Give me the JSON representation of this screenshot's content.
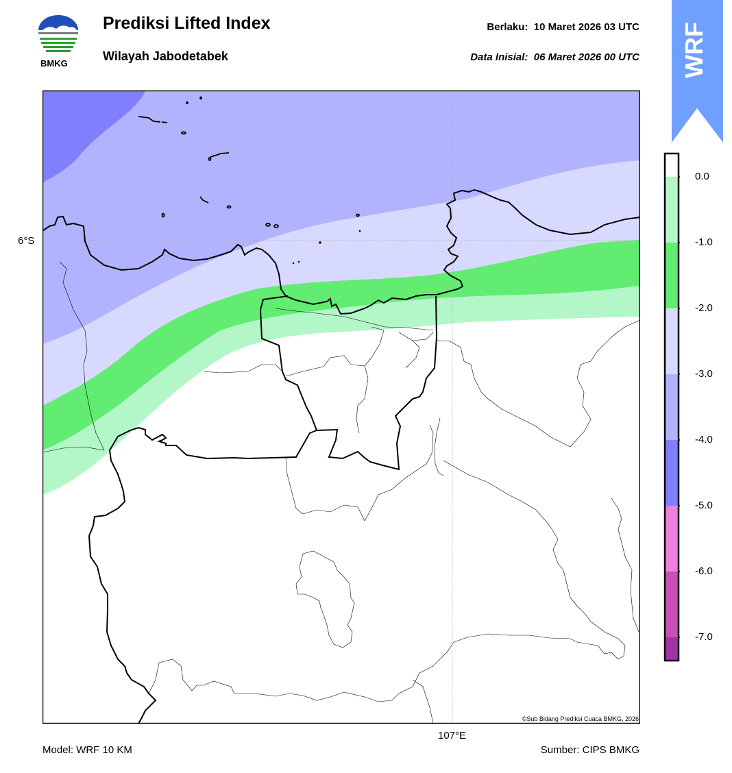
{
  "header": {
    "title": "Prediksi Lifted Index",
    "subtitle": "Wilayah Jabodetabek",
    "valid_label": "Berlaku:  10 Maret 2026 03 UTC",
    "init_label": "Data Inisial:  06 Maret 2026 00 UTC",
    "logo_text": "BMKG"
  },
  "badge": {
    "text": "WRF",
    "color": "#6fa0ff"
  },
  "map": {
    "lat_label": "6°S",
    "lon_label": "107°E",
    "copyright": "©Sub Bidang Prediksi Cuaca BMKG, 2026"
  },
  "colorbar": {
    "labels": [
      "0.0",
      "-1.0",
      "-2.0",
      "-3.0",
      "-4.0",
      "-5.0",
      "-6.0",
      "-7.0"
    ],
    "colors": [
      "#ffffff",
      "#b3f7c8",
      "#62ec72",
      "#d8d9ff",
      "#b2b3ff",
      "#8080ff",
      "#ee80dd",
      "#c850b7",
      "#a233a3",
      "#7a1f7d"
    ]
  },
  "footer": {
    "model": "Model: WRF 10 KM",
    "source": "Sumber: CIPS BMKG"
  }
}
